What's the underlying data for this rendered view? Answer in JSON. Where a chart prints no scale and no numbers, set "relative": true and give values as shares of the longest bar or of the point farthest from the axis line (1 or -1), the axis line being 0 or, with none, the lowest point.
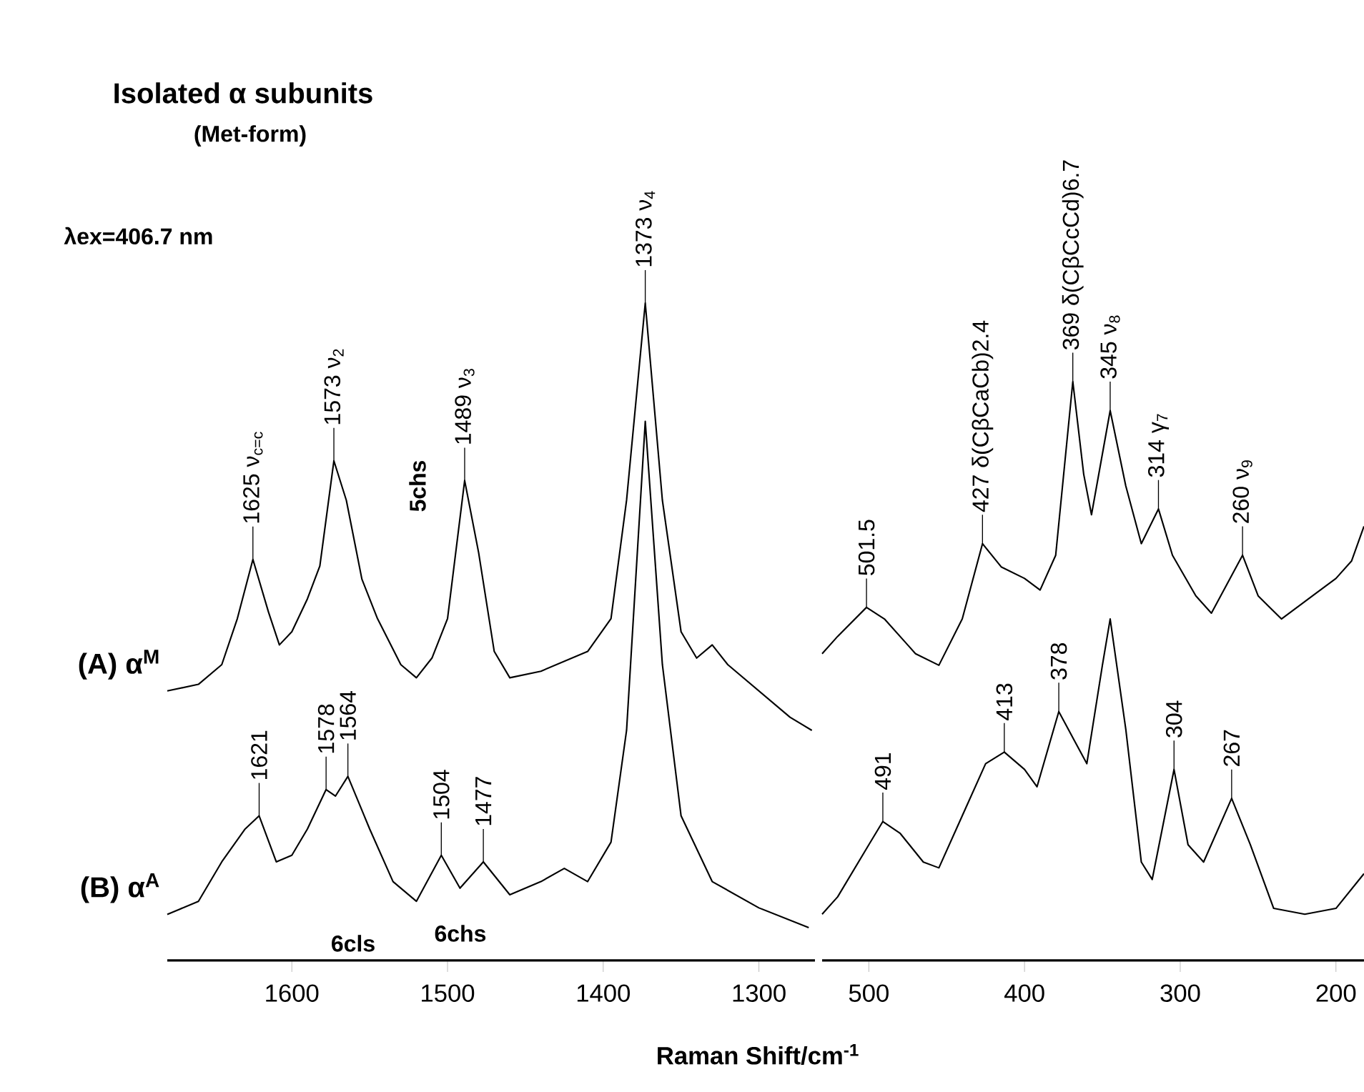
{
  "chart_data": [
    {
      "type": "line",
      "relative": true,
      "title": "Isolated α subunits",
      "subtitle": "(Met-form)",
      "xlabel": "Raman Shift/cm$^{-1}$",
      "xlim": [
        1680,
        1264
      ],
      "xticks": [
        1600,
        1500,
        1400,
        1300
      ],
      "series": [
        {
          "name": "(A) α$^{M}$",
          "color": "#000000",
          "x": [
            1680,
            1660,
            1645,
            1635,
            1625,
            1615,
            1608,
            1600,
            1590,
            1582,
            1573,
            1565,
            1555,
            1545,
            1530,
            1520,
            1510,
            1500,
            1489,
            1480,
            1470,
            1460,
            1440,
            1420,
            1410,
            1395,
            1385,
            1373,
            1362,
            1350,
            1340,
            1330,
            1320,
            1300,
            1280,
            1266
          ],
          "values": [
            0.41,
            0.42,
            0.45,
            0.52,
            0.61,
            0.53,
            0.48,
            0.5,
            0.55,
            0.6,
            0.76,
            0.7,
            0.58,
            0.52,
            0.45,
            0.43,
            0.46,
            0.52,
            0.73,
            0.62,
            0.47,
            0.43,
            0.44,
            0.46,
            0.47,
            0.52,
            0.7,
            1.0,
            0.7,
            0.5,
            0.46,
            0.48,
            0.45,
            0.41,
            0.37,
            0.35
          ]
        },
        {
          "name": "(B) α$^{A}$",
          "color": "#000000",
          "x": [
            1680,
            1660,
            1645,
            1630,
            1621,
            1610,
            1600,
            1590,
            1578,
            1572,
            1564,
            1550,
            1535,
            1520,
            1504,
            1492,
            1477,
            1460,
            1440,
            1425,
            1410,
            1395,
            1385,
            1373,
            1362,
            1350,
            1330,
            1300,
            1268
          ],
          "values": [
            0.07,
            0.09,
            0.15,
            0.2,
            0.22,
            0.15,
            0.16,
            0.2,
            0.26,
            0.25,
            0.28,
            0.2,
            0.12,
            0.09,
            0.16,
            0.11,
            0.15,
            0.1,
            0.12,
            0.14,
            0.12,
            0.18,
            0.35,
            0.82,
            0.45,
            0.22,
            0.12,
            0.08,
            0.05
          ]
        }
      ],
      "annotations": [
        "λex=406.7 nm",
        "5chs",
        "6cls",
        "6chs",
        {
          "text": "1625 ν$_{c=c}$",
          "x": 1625,
          "y": 0.61
        },
        {
          "text": "1573 ν$_{2}$",
          "x": 1573,
          "y": 0.76
        },
        {
          "text": "1489 ν$_{3}$",
          "x": 1489,
          "y": 0.73
        },
        {
          "text": "1373 ν$_{4}$",
          "x": 1373,
          "y": 1.0
        },
        {
          "text": "1621",
          "x": 1621,
          "y": 0.22
        },
        {
          "text": "1578",
          "x": 1578,
          "y": 0.26
        },
        {
          "text": "1564",
          "x": 1564,
          "y": 0.28
        },
        {
          "text": "1504",
          "x": 1504,
          "y": 0.16
        },
        {
          "text": "1477",
          "x": 1477,
          "y": 0.15
        }
      ]
    },
    {
      "type": "line",
      "relative": true,
      "xlim": [
        530,
        182
      ],
      "xticks": [
        500,
        400,
        300,
        200
      ],
      "series": [
        {
          "color": "#000000",
          "x": [
            530,
            520,
            501.5,
            490,
            470,
            455,
            440,
            427,
            415,
            400,
            390,
            380,
            369,
            362,
            357,
            345,
            335,
            325,
            314,
            305,
            290,
            280,
            260,
            250,
            235,
            215,
            200,
            190,
            182
          ],
          "values": [
            0.53,
            0.56,
            0.61,
            0.59,
            0.53,
            0.51,
            0.59,
            0.72,
            0.68,
            0.66,
            0.64,
            0.7,
            1.0,
            0.84,
            0.77,
            0.95,
            0.82,
            0.72,
            0.78,
            0.7,
            0.63,
            0.6,
            0.7,
            0.63,
            0.59,
            0.63,
            0.66,
            0.69,
            0.75
          ]
        },
        {
          "color": "#000000",
          "x": [
            530,
            520,
            500,
            491,
            480,
            465,
            455,
            440,
            425,
            413,
            400,
            392,
            378,
            368,
            360,
            350,
            345,
            335,
            325,
            318,
            304,
            295,
            285,
            267,
            255,
            240,
            220,
            200,
            182
          ],
          "values": [
            0.08,
            0.11,
            0.2,
            0.24,
            0.22,
            0.17,
            0.16,
            0.25,
            0.34,
            0.36,
            0.33,
            0.3,
            0.43,
            0.38,
            0.34,
            0.51,
            0.59,
            0.4,
            0.17,
            0.14,
            0.33,
            0.2,
            0.17,
            0.28,
            0.2,
            0.09,
            0.08,
            0.09,
            0.15
          ]
        }
      ],
      "annotations": [
        {
          "text": "501.5",
          "x": 501.5,
          "y": 0.61
        },
        {
          "text": "427 δ(CβCaCb)2.4",
          "x": 427,
          "y": 0.72
        },
        {
          "text": "369 δ(CβCcCd)6.7",
          "x": 369,
          "y": 1.0
        },
        {
          "text": "345 ν$_{8}$",
          "x": 345,
          "y": 0.95
        },
        {
          "text": "314 γ$_{7}$",
          "x": 314,
          "y": 0.78
        },
        {
          "text": "260 ν$_{9}$",
          "x": 260,
          "y": 0.7
        },
        {
          "text": "491",
          "x": 491,
          "y": 0.24
        },
        {
          "text": "413",
          "x": 413,
          "y": 0.36
        },
        {
          "text": "378",
          "x": 378,
          "y": 0.43
        },
        {
          "text": "304",
          "x": 304,
          "y": 0.33
        },
        {
          "text": "267",
          "x": 267,
          "y": 0.28
        }
      ]
    }
  ]
}
